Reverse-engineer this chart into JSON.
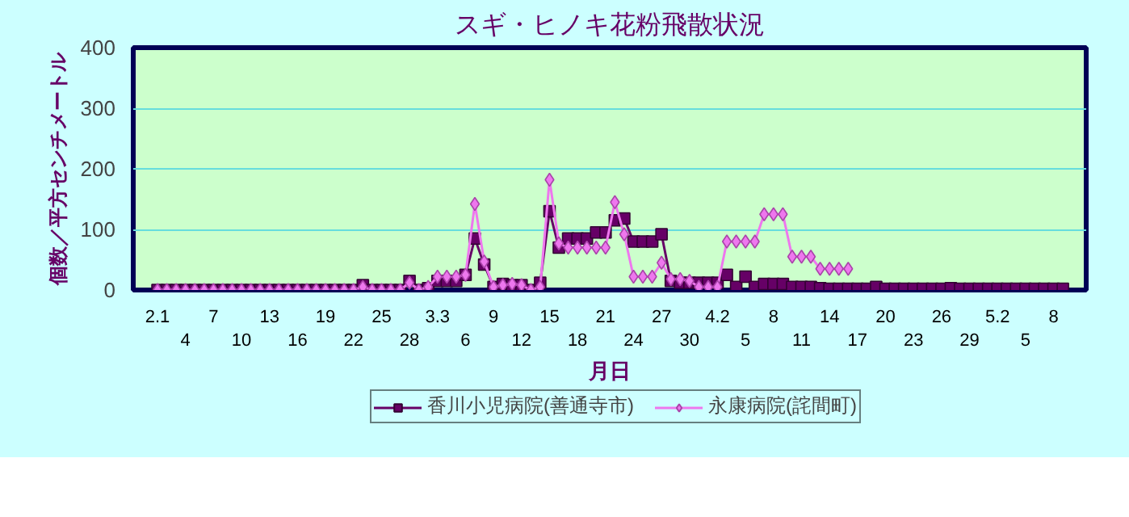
{
  "chart_data": {
    "type": "line",
    "title": "スギ・ヒノキ花粉飛散状況",
    "xlabel": "月日",
    "ylabel": "個数／平方センチメートル",
    "categories": [
      "2.1",
      null,
      null,
      "4",
      null,
      null,
      "7",
      null,
      null,
      "10",
      null,
      null,
      "13",
      null,
      null,
      "16",
      null,
      null,
      "19",
      null,
      null,
      "22",
      null,
      null,
      "25",
      null,
      null,
      "28",
      null,
      null,
      "3.3",
      null,
      null,
      "6",
      null,
      null,
      "9",
      null,
      null,
      "12",
      null,
      null,
      "15",
      null,
      null,
      "18",
      null,
      null,
      "21",
      null,
      null,
      "24",
      null,
      null,
      "27",
      null,
      null,
      "30",
      null,
      null,
      "4.2",
      null,
      null,
      "5",
      null,
      null,
      "8",
      null,
      null,
      "11",
      null,
      null,
      "14",
      null,
      null,
      "17",
      null,
      null,
      "20",
      null,
      null,
      "23",
      null,
      null,
      "26",
      null,
      null,
      "29",
      null,
      null,
      "5.2",
      null,
      null,
      "5",
      null,
      null,
      "8",
      null
    ],
    "series": [
      {
        "name": "香川小児病院(善通寺市)",
        "color": "#660066",
        "marker": "square",
        "values": [
          0,
          0,
          0,
          0,
          0,
          0,
          0,
          0,
          0,
          0,
          0,
          0,
          0,
          0,
          0,
          0,
          0,
          0,
          0,
          0,
          0,
          0,
          8,
          0,
          0,
          0,
          0,
          15,
          0,
          3,
          15,
          15,
          15,
          25,
          85,
          42,
          5,
          10,
          8,
          8,
          0,
          12,
          130,
          70,
          85,
          85,
          85,
          95,
          95,
          115,
          118,
          80,
          80,
          80,
          92,
          15,
          12,
          12,
          12,
          12,
          12,
          25,
          5,
          22,
          5,
          10,
          10,
          10,
          5,
          5,
          5,
          3,
          2,
          2,
          2,
          2,
          2,
          5,
          2,
          2,
          2,
          2,
          2,
          2,
          2,
          3,
          2,
          2,
          2,
          2,
          2,
          2,
          2,
          2,
          2,
          2,
          2,
          2
        ]
      },
      {
        "name": "永康病院(詫間町)",
        "color": "#ee77ee",
        "marker": "diamond",
        "values": [
          0,
          0,
          0,
          0,
          0,
          0,
          0,
          0,
          0,
          0,
          0,
          0,
          0,
          0,
          0,
          0,
          0,
          0,
          0,
          0,
          0,
          0,
          5,
          0,
          0,
          0,
          0,
          12,
          0,
          5,
          22,
          22,
          22,
          25,
          142,
          47,
          5,
          8,
          10,
          8,
          0,
          5,
          182,
          77,
          70,
          70,
          70,
          70,
          70,
          145,
          92,
          22,
          22,
          22,
          45,
          18,
          18,
          15,
          5,
          5,
          5,
          80,
          80,
          80,
          80,
          125,
          125,
          125,
          55,
          55,
          55,
          35,
          35,
          35,
          35,
          null,
          null,
          null,
          null,
          null,
          null,
          null,
          null,
          null,
          null,
          null,
          null,
          null,
          null,
          null,
          null,
          null,
          null,
          null,
          null,
          null,
          null,
          null
        ]
      }
    ],
    "ylim": [
      0,
      400
    ],
    "yticks": [
      0,
      100,
      200,
      300,
      400
    ],
    "grid": "y",
    "legend": "bottom"
  }
}
